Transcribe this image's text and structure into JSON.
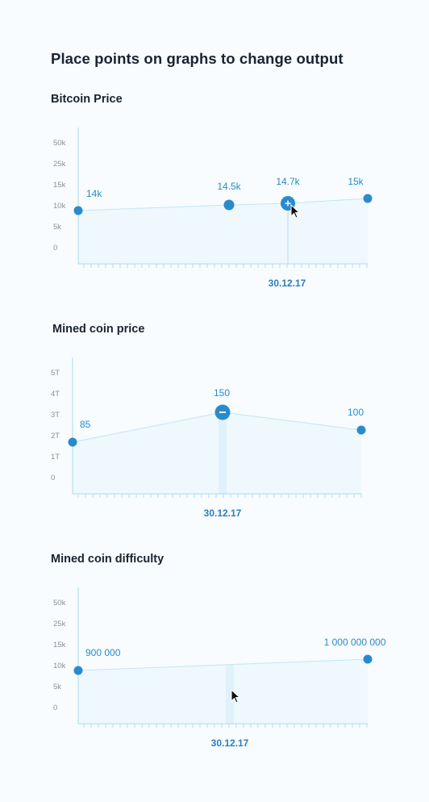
{
  "page_title": "Place points on graphs to change output",
  "colors": {
    "accent": "#2a8bcc",
    "area_fill": "#eef8fd",
    "line": "#bfe3f3",
    "axis": "#a9dbe9",
    "highlight_bar": "#dff1fa"
  },
  "charts": [
    {
      "id": "bitcoin-price",
      "title": "Bitcoin Price",
      "y_ticks": [
        "50k",
        "25k",
        "15k",
        "10k",
        "5k",
        "0"
      ],
      "date_label": "30.12.17",
      "cursor_icon": "arrow-cursor-icon",
      "point_labels": [
        "14k",
        "14.5k",
        "14.7k",
        "15k"
      ],
      "active_point_icon": "plus-icon",
      "points": [
        {
          "label": "14k"
        },
        {
          "label": "14.5k"
        },
        {
          "label": "14.7k",
          "active": "plus"
        },
        {
          "label": "15k"
        }
      ]
    },
    {
      "id": "mined-coin-price",
      "title": "Mined coin price",
      "y_ticks": [
        "5T",
        "4T",
        "3T",
        "2T",
        "1T",
        "0"
      ],
      "date_label": "30.12.17",
      "point_labels": [
        "85",
        "150",
        "100"
      ],
      "active_point_icon": "minus-icon",
      "points": [
        {
          "label": "85"
        },
        {
          "label": "150",
          "active": "minus"
        },
        {
          "label": "100"
        }
      ]
    },
    {
      "id": "mined-coin-difficulty",
      "title": "Mined coin difficulty",
      "y_ticks": [
        "50k",
        "25k",
        "15k",
        "10k",
        "5k",
        "0"
      ],
      "date_label": "30.12.17",
      "cursor_icon": "arrow-cursor-icon",
      "point_labels": [
        "900 000",
        "1 000 000 000"
      ],
      "points": [
        {
          "label": "900 000"
        },
        {
          "label": "1 000 000 000"
        }
      ]
    }
  ]
}
